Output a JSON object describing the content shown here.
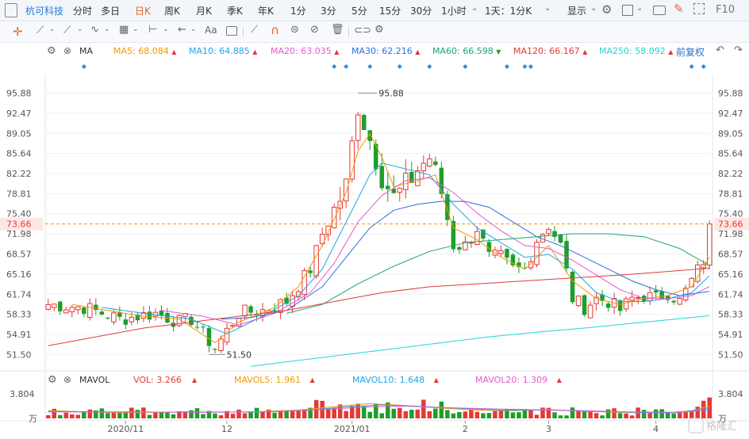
{
  "toolbar": {
    "stock": "杭可科技",
    "periods": [
      "分时",
      "多日",
      "日K",
      "周K",
      "月K",
      "季K",
      "年K",
      "1分",
      "3分",
      "5分",
      "15分",
      "30分",
      "1小时",
      "1天：1分K"
    ],
    "active_period": "日K",
    "display_label": "显示",
    "f10_label": "F10"
  },
  "ma_bar": {
    "label": "MA",
    "items": [
      {
        "name": "MA5",
        "value": "68.084",
        "color": "#f39800",
        "trend": "up"
      },
      {
        "name": "MA10",
        "value": "64.885",
        "color": "#1ea5e8",
        "trend": "up"
      },
      {
        "name": "MA20",
        "value": "63.035",
        "color": "#e05bd0",
        "trend": "up"
      },
      {
        "name": "MA30",
        "value": "62.216",
        "color": "#2c6fde",
        "trend": "up"
      },
      {
        "name": "MA60",
        "value": "66.598",
        "color": "#1aa46b",
        "trend": "down"
      },
      {
        "name": "MA120",
        "value": "66.167",
        "color": "#e53935",
        "trend": "up"
      },
      {
        "name": "MA250",
        "value": "58.092",
        "color": "#1fd6d2",
        "trend": "up"
      }
    ],
    "adjust_label": "前复权"
  },
  "vol_bar": {
    "label": "MAVOL",
    "items": [
      {
        "name": "VOL",
        "value": "3.266",
        "color": "#e53935",
        "trend": "up"
      },
      {
        "name": "MAVOL5",
        "value": "1.961",
        "color": "#f39800",
        "trend": "up"
      },
      {
        "name": "MAVOL10",
        "value": "1.648",
        "color": "#1ea5e8",
        "trend": "up"
      },
      {
        "name": "MAVOL20",
        "value": "1.309",
        "color": "#e05bd0",
        "trend": "up"
      }
    ]
  },
  "chart_data": {
    "type": "candlestick",
    "y_ticks": [
      95.88,
      92.47,
      89.05,
      85.64,
      82.22,
      78.81,
      75.4,
      71.98,
      68.57,
      65.16,
      61.74,
      58.33,
      54.91,
      51.5
    ],
    "ylim": [
      49.0,
      98.5
    ],
    "current_price": "73.66",
    "max_label": "95.88",
    "min_label": "51.50",
    "x_labels": [
      {
        "label": "2020/11",
        "index": 13
      },
      {
        "label": "12",
        "index": 30
      },
      {
        "label": "2021/01",
        "index": 51
      },
      {
        "label": "2",
        "index": 70
      },
      {
        "label": "3",
        "index": 84
      },
      {
        "label": "4",
        "index": 102
      }
    ],
    "vol_tick": "3.804",
    "vol_unit": "万",
    "vol_ylim": [
      0,
      4.2
    ],
    "up_color": "#e53935",
    "down_color": "#1e9e2a",
    "close_path": [
      [
        0,
        60.0
      ],
      [
        6,
        59.5
      ],
      [
        12,
        57.5
      ],
      [
        18,
        58.5
      ],
      [
        22,
        57.0
      ],
      [
        24,
        57.5
      ],
      [
        28,
        52.5
      ],
      [
        30,
        55.5
      ],
      [
        32,
        58.5
      ],
      [
        36,
        59.0
      ],
      [
        40,
        60.5
      ],
      [
        44,
        66.0
      ],
      [
        46,
        72.0
      ],
      [
        48,
        76.0
      ],
      [
        50,
        80.0
      ],
      [
        52,
        94.0
      ],
      [
        54,
        88.0
      ],
      [
        56,
        82.0
      ],
      [
        58,
        78.0
      ],
      [
        60,
        80.0
      ],
      [
        62,
        83.0
      ],
      [
        64,
        85.0
      ],
      [
        66,
        79.0
      ],
      [
        68,
        70.0
      ],
      [
        70,
        70.0
      ],
      [
        72,
        73.0
      ],
      [
        74,
        68.0
      ],
      [
        76,
        68.0
      ],
      [
        78,
        66.0
      ],
      [
        80,
        66.0
      ],
      [
        82,
        71.0
      ],
      [
        84,
        73.5
      ],
      [
        86,
        70.0
      ],
      [
        88,
        61.0
      ],
      [
        90,
        59.5
      ],
      [
        92,
        61.0
      ],
      [
        94,
        60.5
      ],
      [
        96,
        59.0
      ],
      [
        98,
        61.0
      ],
      [
        100,
        61.5
      ],
      [
        102,
        61.0
      ],
      [
        104,
        62.0
      ],
      [
        106,
        60.5
      ],
      [
        108,
        64.0
      ],
      [
        110,
        67.5
      ],
      [
        111,
        73.66
      ]
    ],
    "ma_lines": [
      {
        "name": "MA5",
        "color": "#f39800",
        "path": [
          [
            4,
            60.0
          ],
          [
            10,
            59.0
          ],
          [
            16,
            58.0
          ],
          [
            22,
            57.5
          ],
          [
            28,
            53.5
          ],
          [
            32,
            57.0
          ],
          [
            38,
            59.5
          ],
          [
            42,
            63.0
          ],
          [
            46,
            70.0
          ],
          [
            50,
            79.0
          ],
          [
            52,
            86.0
          ],
          [
            54,
            89.0
          ],
          [
            56,
            85.0
          ],
          [
            58,
            80.0
          ],
          [
            62,
            81.0
          ],
          [
            65,
            82.0
          ],
          [
            68,
            73.0
          ],
          [
            72,
            71.0
          ],
          [
            76,
            68.0
          ],
          [
            80,
            66.0
          ],
          [
            84,
            70.0
          ],
          [
            88,
            64.0
          ],
          [
            92,
            61.0
          ],
          [
            96,
            60.0
          ],
          [
            100,
            61.0
          ],
          [
            104,
            61.5
          ],
          [
            108,
            63.0
          ],
          [
            111,
            68.08
          ]
        ]
      },
      {
        "name": "MA10",
        "color": "#1ea5e8",
        "path": [
          [
            9,
            59.5
          ],
          [
            16,
            58.5
          ],
          [
            24,
            57.5
          ],
          [
            30,
            55.0
          ],
          [
            36,
            58.0
          ],
          [
            42,
            61.5
          ],
          [
            46,
            66.0
          ],
          [
            50,
            74.0
          ],
          [
            54,
            82.0
          ],
          [
            56,
            84.0
          ],
          [
            60,
            83.0
          ],
          [
            64,
            82.0
          ],
          [
            68,
            77.0
          ],
          [
            72,
            73.0
          ],
          [
            76,
            70.5
          ],
          [
            80,
            68.0
          ],
          [
            84,
            68.5
          ],
          [
            88,
            66.0
          ],
          [
            92,
            62.0
          ],
          [
            96,
            60.5
          ],
          [
            100,
            60.5
          ],
          [
            104,
            61.0
          ],
          [
            108,
            62.0
          ],
          [
            111,
            64.89
          ]
        ]
      },
      {
        "name": "MA20",
        "color": "#e05bd0",
        "path": [
          [
            19,
            59.0
          ],
          [
            26,
            58.0
          ],
          [
            32,
            56.5
          ],
          [
            38,
            58.5
          ],
          [
            44,
            62.0
          ],
          [
            48,
            67.0
          ],
          [
            52,
            74.0
          ],
          [
            56,
            78.5
          ],
          [
            60,
            81.0
          ],
          [
            64,
            81.5
          ],
          [
            68,
            79.0
          ],
          [
            72,
            75.5
          ],
          [
            76,
            72.5
          ],
          [
            80,
            70.0
          ],
          [
            84,
            69.5
          ],
          [
            88,
            67.5
          ],
          [
            92,
            65.0
          ],
          [
            96,
            62.5
          ],
          [
            100,
            61.0
          ],
          [
            104,
            61.0
          ],
          [
            108,
            61.5
          ],
          [
            111,
            63.04
          ]
        ]
      },
      {
        "name": "MA30",
        "color": "#2c6fde",
        "path": [
          [
            29,
            57.5
          ],
          [
            34,
            57.8
          ],
          [
            40,
            59.0
          ],
          [
            46,
            63.0
          ],
          [
            50,
            68.0
          ],
          [
            54,
            73.0
          ],
          [
            58,
            76.0
          ],
          [
            62,
            77.0
          ],
          [
            66,
            77.5
          ],
          [
            70,
            77.5
          ],
          [
            74,
            76.5
          ],
          [
            78,
            74.0
          ],
          [
            82,
            71.5
          ],
          [
            86,
            70.0
          ],
          [
            90,
            68.0
          ],
          [
            94,
            66.0
          ],
          [
            98,
            64.0
          ],
          [
            102,
            62.5
          ],
          [
            106,
            61.5
          ],
          [
            111,
            62.22
          ]
        ]
      },
      {
        "name": "MA60",
        "color": "#1aa46b",
        "path": [
          [
            40,
            58.5
          ],
          [
            46,
            60.0
          ],
          [
            52,
            63.5
          ],
          [
            58,
            66.5
          ],
          [
            64,
            69.0
          ],
          [
            70,
            70.5
          ],
          [
            76,
            71.0
          ],
          [
            82,
            71.5
          ],
          [
            88,
            72.0
          ],
          [
            94,
            72.0
          ],
          [
            100,
            71.5
          ],
          [
            106,
            69.5
          ],
          [
            111,
            66.6
          ]
        ]
      },
      {
        "name": "MA120",
        "color": "#e53935",
        "path": [
          [
            0,
            53.0
          ],
          [
            8,
            54.5
          ],
          [
            16,
            56.0
          ],
          [
            24,
            57.0
          ],
          [
            32,
            58.0
          ],
          [
            40,
            59.0
          ],
          [
            48,
            60.5
          ],
          [
            56,
            62.0
          ],
          [
            64,
            63.0
          ],
          [
            72,
            63.5
          ],
          [
            80,
            64.0
          ],
          [
            88,
            64.5
          ],
          [
            96,
            65.0
          ],
          [
            104,
            65.6
          ],
          [
            111,
            66.17
          ]
        ]
      },
      {
        "name": "MA250",
        "color": "#1fd6d2",
        "path": [
          [
            34,
            49.5
          ],
          [
            42,
            50.5
          ],
          [
            50,
            51.5
          ],
          [
            58,
            52.5
          ],
          [
            66,
            53.5
          ],
          [
            74,
            54.5
          ],
          [
            82,
            55.3
          ],
          [
            90,
            56.0
          ],
          [
            98,
            56.8
          ],
          [
            104,
            57.4
          ],
          [
            111,
            58.09
          ]
        ]
      }
    ],
    "mavol_lines": [
      {
        "name": "MAVOL5",
        "color": "#f39800",
        "path": [
          [
            0,
            1.2
          ],
          [
            12,
            0.9
          ],
          [
            24,
            1.0
          ],
          [
            34,
            1.0
          ],
          [
            42,
            1.3
          ],
          [
            50,
            2.0
          ],
          [
            54,
            2.3
          ],
          [
            60,
            2.0
          ],
          [
            66,
            1.6
          ],
          [
            72,
            1.3
          ],
          [
            78,
            1.2
          ],
          [
            84,
            1.4
          ],
          [
            90,
            1.1
          ],
          [
            98,
            0.9
          ],
          [
            104,
            0.9
          ],
          [
            108,
            1.2
          ],
          [
            111,
            1.96
          ]
        ]
      },
      {
        "name": "MAVOL10",
        "color": "#1ea5e8",
        "path": [
          [
            0,
            1.1
          ],
          [
            12,
            1.0
          ],
          [
            24,
            0.95
          ],
          [
            36,
            1.0
          ],
          [
            44,
            1.3
          ],
          [
            50,
            1.8
          ],
          [
            56,
            2.1
          ],
          [
            62,
            1.9
          ],
          [
            68,
            1.6
          ],
          [
            76,
            1.3
          ],
          [
            84,
            1.3
          ],
          [
            92,
            1.1
          ],
          [
            100,
            0.9
          ],
          [
            106,
            0.9
          ],
          [
            111,
            1.65
          ]
        ]
      },
      {
        "name": "MAVOL20",
        "color": "#e05bd0",
        "path": [
          [
            0,
            1.0
          ],
          [
            14,
            1.0
          ],
          [
            26,
            0.95
          ],
          [
            38,
            1.05
          ],
          [
            46,
            1.4
          ],
          [
            54,
            1.8
          ],
          [
            60,
            1.9
          ],
          [
            66,
            1.7
          ],
          [
            74,
            1.5
          ],
          [
            82,
            1.35
          ],
          [
            90,
            1.2
          ],
          [
            98,
            1.0
          ],
          [
            106,
            0.95
          ],
          [
            111,
            1.31
          ]
        ]
      }
    ]
  },
  "watermark": "格隆汇"
}
